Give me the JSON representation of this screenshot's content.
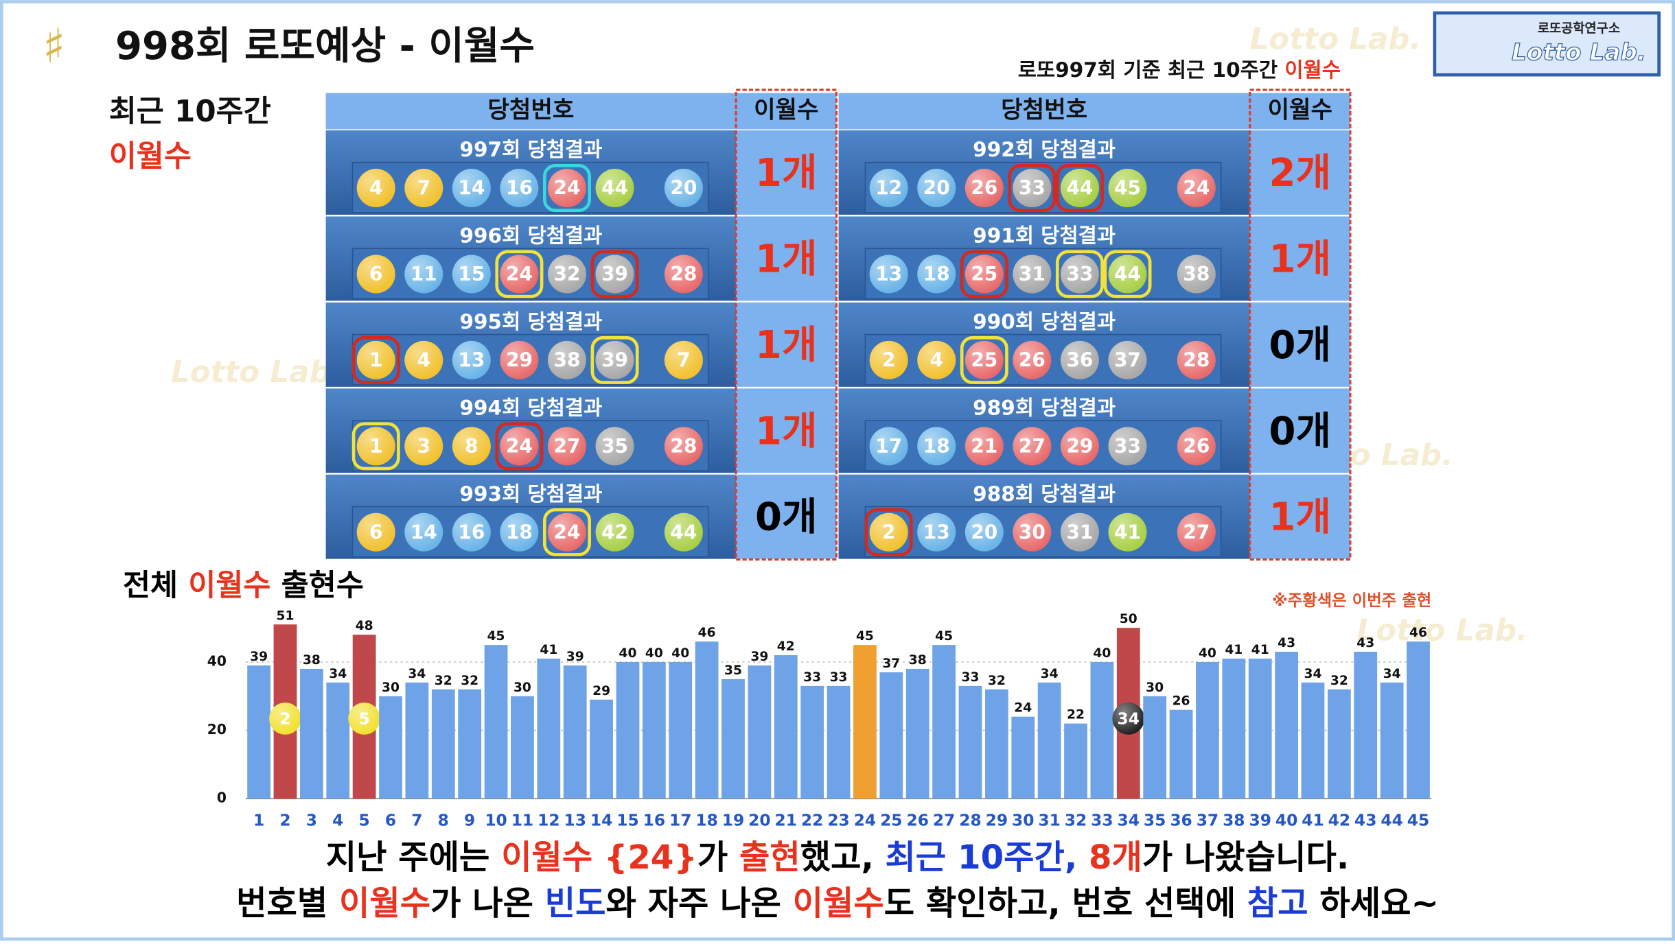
{
  "header": {
    "title": "998회 로또예상 - 이월수",
    "logo_top": "로또공학연구소",
    "logo": "Lotto Lab.",
    "basis": "로또997회 기준 최근 10주간 ",
    "basis_highlight": "이월수",
    "side_label": "최근 10주간",
    "side_highlight": "이월수",
    "watermark": "Lotto Lab."
  },
  "table": {
    "columns": [
      "당첨번호",
      "이월수"
    ],
    "blocks": [
      [
        {
          "label": "997회 당첨결과",
          "numbers": [
            4,
            7,
            14,
            16,
            24,
            44
          ],
          "rings": [
            null,
            null,
            null,
            null,
            "#39d8dc",
            null
          ],
          "bonus": 20,
          "count": "1개",
          "count_color": "#e8321e"
        },
        {
          "label": "996회 당첨결과",
          "numbers": [
            6,
            11,
            15,
            24,
            32,
            39
          ],
          "rings": [
            null,
            null,
            null,
            "#f2e23a",
            null,
            "#d42a1e"
          ],
          "bonus": 28,
          "count": "1개",
          "count_color": "#e8321e"
        },
        {
          "label": "995회 당첨결과",
          "numbers": [
            1,
            4,
            13,
            29,
            38,
            39
          ],
          "rings": [
            "#d42a1e",
            null,
            null,
            null,
            null,
            "#f2e23a"
          ],
          "bonus": 7,
          "count": "1개",
          "count_color": "#e8321e"
        },
        {
          "label": "994회 당첨결과",
          "numbers": [
            1,
            3,
            8,
            24,
            27,
            35
          ],
          "rings": [
            "#f2e23a",
            null,
            null,
            "#d42a1e",
            null,
            null
          ],
          "bonus": 28,
          "count": "1개",
          "count_color": "#e8321e"
        },
        {
          "label": "993회 당첨결과",
          "numbers": [
            6,
            14,
            16,
            18,
            24,
            42
          ],
          "rings": [
            null,
            null,
            null,
            null,
            "#f2e23a",
            null
          ],
          "bonus": 44,
          "count": "0개",
          "count_color": "#000000"
        }
      ],
      [
        {
          "label": "992회 당첨결과",
          "numbers": [
            12,
            20,
            26,
            33,
            44,
            45
          ],
          "rings": [
            null,
            null,
            null,
            "#d42a1e",
            "#d42a1e",
            null
          ],
          "bonus": 24,
          "count": "2개",
          "count_color": "#e8321e"
        },
        {
          "label": "991회 당첨결과",
          "numbers": [
            13,
            18,
            25,
            31,
            33,
            44
          ],
          "rings": [
            null,
            null,
            "#d42a1e",
            null,
            "#f2e23a",
            "#f2e23a"
          ],
          "bonus": 38,
          "count": "1개",
          "count_color": "#e8321e"
        },
        {
          "label": "990회 당첨결과",
          "numbers": [
            2,
            4,
            25,
            26,
            36,
            37
          ],
          "rings": [
            null,
            null,
            "#f2e23a",
            null,
            null,
            null
          ],
          "bonus": 28,
          "count": "0개",
          "count_color": "#000000"
        },
        {
          "label": "989회 당첨결과",
          "numbers": [
            17,
            18,
            21,
            27,
            29,
            33
          ],
          "rings": [
            null,
            null,
            null,
            null,
            null,
            null
          ],
          "bonus": 26,
          "count": "0개",
          "count_color": "#000000"
        },
        {
          "label": "988회 당첨결과",
          "numbers": [
            2,
            13,
            20,
            30,
            31,
            41
          ],
          "rings": [
            "#d42a1e",
            null,
            null,
            null,
            null,
            null
          ],
          "bonus": 27,
          "count": "1개",
          "count_color": "#e8321e"
        }
      ]
    ]
  },
  "chart_data": {
    "type": "bar",
    "title": [
      {
        "text": "전체 ",
        "color": "#000000"
      },
      {
        "text": "이월수",
        "color": "#e8321e"
      },
      {
        "text": " 출현수",
        "color": "#000000"
      }
    ],
    "note": "※주황색은 이번주 출현",
    "categories": [
      1,
      2,
      3,
      4,
      5,
      6,
      7,
      8,
      9,
      10,
      11,
      12,
      13,
      14,
      15,
      16,
      17,
      18,
      19,
      20,
      21,
      22,
      23,
      24,
      25,
      26,
      27,
      28,
      29,
      30,
      31,
      32,
      33,
      34,
      35,
      36,
      37,
      38,
      39,
      40,
      41,
      42,
      43,
      44,
      45
    ],
    "values": [
      39,
      51,
      38,
      34,
      48,
      30,
      34,
      32,
      32,
      45,
      30,
      41,
      39,
      29,
      40,
      40,
      40,
      46,
      35,
      39,
      42,
      33,
      33,
      45,
      37,
      38,
      45,
      33,
      32,
      24,
      34,
      22,
      40,
      50,
      30,
      26,
      40,
      41,
      41,
      43,
      34,
      32,
      43,
      34,
      46
    ],
    "colors": [
      "#6fa3e8",
      "#c0474a",
      "#6fa3e8",
      "#6fa3e8",
      "#c0474a",
      "#6fa3e8",
      "#6fa3e8",
      "#6fa3e8",
      "#6fa3e8",
      "#6fa3e8",
      "#6fa3e8",
      "#6fa3e8",
      "#6fa3e8",
      "#6fa3e8",
      "#6fa3e8",
      "#6fa3e8",
      "#6fa3e8",
      "#6fa3e8",
      "#6fa3e8",
      "#6fa3e8",
      "#6fa3e8",
      "#6fa3e8",
      "#6fa3e8",
      "#f0a030",
      "#6fa3e8",
      "#6fa3e8",
      "#6fa3e8",
      "#6fa3e8",
      "#6fa3e8",
      "#6fa3e8",
      "#6fa3e8",
      "#6fa3e8",
      "#6fa3e8",
      "#c0474a",
      "#6fa3e8",
      "#6fa3e8",
      "#6fa3e8",
      "#6fa3e8",
      "#6fa3e8",
      "#6fa3e8",
      "#6fa3e8",
      "#6fa3e8",
      "#6fa3e8",
      "#6fa3e8",
      "#6fa3e8"
    ],
    "ylim": [
      0,
      60
    ],
    "yticks": [
      0,
      20,
      40
    ],
    "grid": true
  },
  "footer": {
    "lines": [
      [
        {
          "text": "지난 주에는 ",
          "color": "#000000"
        },
        {
          "text": "이월수 {24}",
          "color": "#e8321e"
        },
        {
          "text": "가 ",
          "color": "#000000"
        },
        {
          "text": "출현",
          "color": "#e8321e"
        },
        {
          "text": "했고, ",
          "color": "#000000"
        },
        {
          "text": "최근 10주간, ",
          "color": "#1a3cd6"
        },
        {
          "text": "8개",
          "color": "#e8321e"
        },
        {
          "text": "가 나왔습니다.",
          "color": "#000000"
        }
      ],
      [
        {
          "text": "번호별 ",
          "color": "#000000"
        },
        {
          "text": "이월수",
          "color": "#e8321e"
        },
        {
          "text": "가 나온 ",
          "color": "#000000"
        },
        {
          "text": "빈도",
          "color": "#1a3cd6"
        },
        {
          "text": "와 자주 나온 ",
          "color": "#000000"
        },
        {
          "text": "이월수",
          "color": "#e8321e"
        },
        {
          "text": "도 확인하고, 번호 선택에 ",
          "color": "#000000"
        },
        {
          "text": "참고",
          "color": "#1a3cd6"
        },
        {
          "text": " 하세요~",
          "color": "#000000"
        }
      ]
    ]
  }
}
